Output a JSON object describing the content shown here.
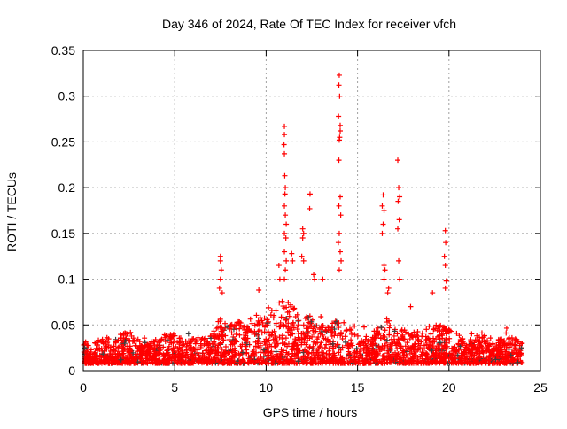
{
  "chart_data": {
    "type": "scatter",
    "title": "Day 346 of 2024, Rate Of TEC Index for receiver vfch",
    "xlabel": "GPS time / hours",
    "ylabel": "ROTI / TECUs",
    "xlim": [
      0,
      25
    ],
    "ylim": [
      0,
      0.35
    ],
    "xticks": [
      "0",
      "5",
      "10",
      "15",
      "20",
      "25"
    ],
    "yticks": [
      "0",
      "0.05",
      "0.1",
      "0.15",
      "0.2",
      "0.25",
      "0.3",
      "0.35"
    ],
    "grid": true,
    "marker": "plus",
    "color": "#ff0000",
    "band_note_values": {
      "hours": [
        0,
        0.5,
        1,
        1.5,
        2,
        2.5,
        3,
        3.5,
        4,
        4.5,
        5,
        5.5,
        6,
        6.5,
        7,
        7.5,
        8,
        8.5,
        9,
        9.5,
        10,
        10.5,
        11,
        11.5,
        12,
        12.5,
        13,
        13.5,
        14,
        14.5,
        15,
        15.5,
        16,
        16.5,
        17,
        17.5,
        18,
        18.5,
        19,
        19.5,
        20,
        20.5,
        21,
        21.5,
        22,
        22.5,
        23,
        23.5,
        24
      ],
      "typical_max_roti": [
        0.03,
        0.03,
        0.035,
        0.03,
        0.04,
        0.045,
        0.035,
        0.03,
        0.035,
        0.04,
        0.04,
        0.035,
        0.035,
        0.035,
        0.04,
        0.06,
        0.05,
        0.055,
        0.05,
        0.06,
        0.06,
        0.07,
        0.08,
        0.07,
        0.06,
        0.06,
        0.05,
        0.05,
        0.06,
        0.05,
        0.04,
        0.04,
        0.045,
        0.06,
        0.05,
        0.045,
        0.04,
        0.045,
        0.05,
        0.05,
        0.045,
        0.04,
        0.03,
        0.04,
        0.04,
        0.035,
        0.035,
        0.04,
        0.035
      ],
      "typical_min_roti": 0.008
    },
    "spikes": [
      [
        7.5,
        0.125
      ],
      [
        7.5,
        0.12
      ],
      [
        7.55,
        0.11
      ],
      [
        7.5,
        0.1
      ],
      [
        7.45,
        0.09
      ],
      [
        7.6,
        0.085
      ],
      [
        9.6,
        0.088
      ],
      [
        10.7,
        0.115
      ],
      [
        10.75,
        0.1
      ],
      [
        11.0,
        0.267
      ],
      [
        11.0,
        0.258
      ],
      [
        10.98,
        0.247
      ],
      [
        11.0,
        0.237
      ],
      [
        11.02,
        0.213
      ],
      [
        11.05,
        0.2
      ],
      [
        11.03,
        0.193
      ],
      [
        11.0,
        0.18
      ],
      [
        11.05,
        0.17
      ],
      [
        11.1,
        0.16
      ],
      [
        11.0,
        0.15
      ],
      [
        11.08,
        0.145
      ],
      [
        11.0,
        0.13
      ],
      [
        11.1,
        0.12
      ],
      [
        11.05,
        0.11
      ],
      [
        11.0,
        0.1
      ],
      [
        11.4,
        0.128
      ],
      [
        11.45,
        0.12
      ],
      [
        12.0,
        0.155
      ],
      [
        12.05,
        0.15
      ],
      [
        12.0,
        0.145
      ],
      [
        11.95,
        0.125
      ],
      [
        12.05,
        0.12
      ],
      [
        12.4,
        0.193
      ],
      [
        12.38,
        0.177
      ],
      [
        12.6,
        0.105
      ],
      [
        12.65,
        0.1
      ],
      [
        13.1,
        0.1
      ],
      [
        14.0,
        0.323
      ],
      [
        13.98,
        0.312
      ],
      [
        14.02,
        0.3
      ],
      [
        13.96,
        0.278
      ],
      [
        14.05,
        0.268
      ],
      [
        14.05,
        0.262
      ],
      [
        14.02,
        0.255
      ],
      [
        14.0,
        0.252
      ],
      [
        13.98,
        0.23
      ],
      [
        14.05,
        0.19
      ],
      [
        13.98,
        0.18
      ],
      [
        14.08,
        0.17
      ],
      [
        14.0,
        0.15
      ],
      [
        13.95,
        0.14
      ],
      [
        14.05,
        0.13
      ],
      [
        14.1,
        0.12
      ],
      [
        14.0,
        0.11
      ],
      [
        16.4,
        0.192
      ],
      [
        16.35,
        0.18
      ],
      [
        16.45,
        0.175
      ],
      [
        16.4,
        0.16
      ],
      [
        16.35,
        0.15
      ],
      [
        16.45,
        0.115
      ],
      [
        16.5,
        0.11
      ],
      [
        16.45,
        0.1
      ],
      [
        16.7,
        0.09
      ],
      [
        16.65,
        0.085
      ],
      [
        17.2,
        0.23
      ],
      [
        17.25,
        0.2
      ],
      [
        17.3,
        0.19
      ],
      [
        17.22,
        0.185
      ],
      [
        17.28,
        0.165
      ],
      [
        17.2,
        0.155
      ],
      [
        17.25,
        0.12
      ],
      [
        17.3,
        0.1
      ],
      [
        19.8,
        0.153
      ],
      [
        19.82,
        0.14
      ],
      [
        19.75,
        0.125
      ],
      [
        19.8,
        0.115
      ],
      [
        19.85,
        0.098
      ],
      [
        19.8,
        0.09
      ],
      [
        19.1,
        0.085
      ],
      [
        17.9,
        0.07
      ]
    ]
  }
}
